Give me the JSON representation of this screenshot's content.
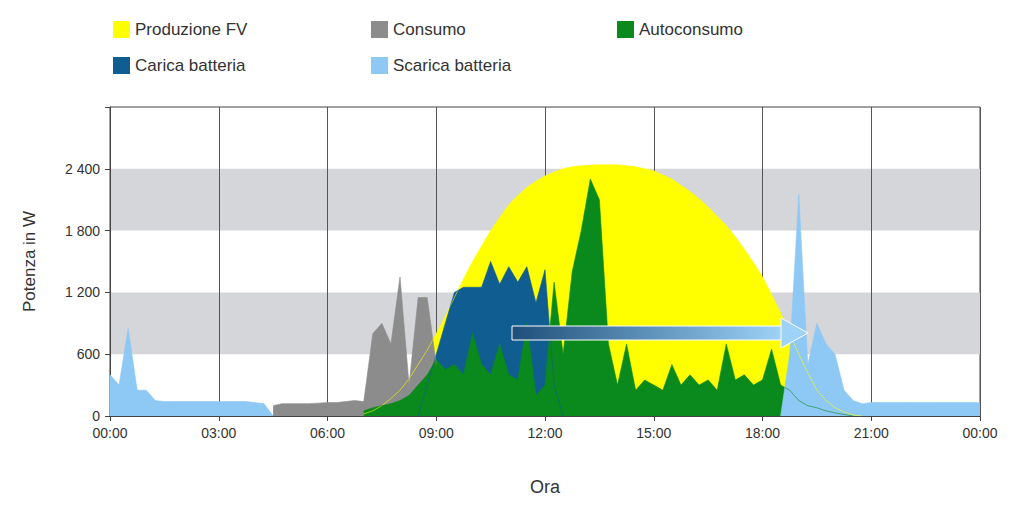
{
  "chart_data": {
    "type": "area",
    "x_label": "Ora",
    "y_label": "Potenza in W",
    "xlim": [
      0,
      24
    ],
    "xticks": [
      {
        "value": 0,
        "label": "00:00"
      },
      {
        "value": 3,
        "label": "03:00"
      },
      {
        "value": 6,
        "label": "06:00"
      },
      {
        "value": 9,
        "label": "09:00"
      },
      {
        "value": 12,
        "label": "12:00"
      },
      {
        "value": 15,
        "label": "15:00"
      },
      {
        "value": 18,
        "label": "18:00"
      },
      {
        "value": 21,
        "label": "21:00"
      },
      {
        "value": 24,
        "label": "00:00"
      }
    ],
    "ylim": [
      0,
      3000
    ],
    "yticks": [
      0,
      600,
      {
        "value": 1200,
        "label": "1 200"
      },
      {
        "value": 1800,
        "label": "1 800"
      },
      {
        "value": 2400,
        "label": "2 400"
      }
    ],
    "grid": true,
    "legend": "top",
    "x": [
      0,
      0.25,
      0.5,
      0.75,
      1,
      1.25,
      1.5,
      1.75,
      2,
      2.25,
      2.5,
      2.75,
      3,
      3.25,
      3.5,
      3.75,
      4,
      4.25,
      4.5,
      4.75,
      5,
      5.25,
      5.5,
      5.75,
      6,
      6.25,
      6.5,
      6.75,
      7,
      7.25,
      7.5,
      7.75,
      8,
      8.25,
      8.5,
      8.75,
      9,
      9.25,
      9.5,
      9.75,
      10,
      10.25,
      10.5,
      10.75,
      11,
      11.25,
      11.5,
      11.75,
      12,
      12.25,
      12.5,
      12.75,
      13,
      13.25,
      13.5,
      13.75,
      14,
      14.25,
      14.5,
      14.75,
      15,
      15.25,
      15.5,
      15.75,
      16,
      16.25,
      16.5,
      16.75,
      17,
      17.25,
      17.5,
      17.75,
      18,
      18.25,
      18.5,
      18.75,
      19,
      19.25,
      19.5,
      19.75,
      20,
      20.25,
      20.5,
      20.75,
      21,
      21.25,
      21.5,
      21.75,
      22,
      22.25,
      22.5,
      22.75,
      23,
      23.25,
      23.5,
      23.75,
      24
    ],
    "series": [
      {
        "name": "Produzione FV",
        "color": "#ffff00",
        "values": [
          null,
          null,
          null,
          null,
          null,
          null,
          null,
          null,
          null,
          null,
          null,
          null,
          null,
          null,
          null,
          null,
          null,
          null,
          null,
          null,
          null,
          null,
          null,
          null,
          null,
          null,
          null,
          null,
          20,
          50,
          100,
          170,
          250,
          360,
          500,
          640,
          800,
          970,
          1150,
          1330,
          1500,
          1650,
          1800,
          1930,
          2050,
          2140,
          2220,
          2280,
          2330,
          2370,
          2400,
          2420,
          2430,
          2435,
          2440,
          2440,
          2440,
          2430,
          2420,
          2400,
          2380,
          2340,
          2300,
          2240,
          2180,
          2110,
          2030,
          1940,
          1850,
          1740,
          1620,
          1490,
          1350,
          1180,
          1000,
          800,
          600,
          420,
          250,
          150,
          80,
          40,
          10,
          0,
          null,
          null,
          null,
          null,
          null,
          null,
          null,
          null,
          null,
          null,
          null,
          null,
          null
        ]
      },
      {
        "name": "Carica batteria",
        "color": "#105e91",
        "values": [
          null,
          null,
          null,
          null,
          null,
          null,
          null,
          null,
          null,
          null,
          null,
          null,
          null,
          null,
          null,
          null,
          null,
          null,
          null,
          null,
          null,
          null,
          null,
          null,
          null,
          null,
          null,
          null,
          null,
          null,
          null,
          null,
          null,
          null,
          0,
          300,
          600,
          900,
          1200,
          1250,
          1250,
          1250,
          1500,
          1280,
          1450,
          1300,
          1450,
          1100,
          1420,
          300,
          0,
          null,
          null,
          null,
          null,
          null,
          null,
          null,
          null,
          null,
          null,
          null,
          null,
          null,
          null,
          null,
          null,
          null,
          null,
          null,
          null,
          null,
          null,
          null,
          null,
          null,
          null,
          null,
          null,
          null,
          null,
          null,
          null,
          null,
          null,
          null,
          null,
          null,
          null,
          null,
          null,
          null,
          null,
          null,
          null,
          null,
          null
        ]
      },
      {
        "name": "Consumo",
        "color": "#8c8c8c",
        "values": [
          null,
          null,
          null,
          null,
          null,
          null,
          null,
          null,
          null,
          null,
          null,
          null,
          null,
          null,
          null,
          null,
          null,
          null,
          100,
          120,
          120,
          120,
          120,
          125,
          130,
          130,
          140,
          150,
          140,
          800,
          900,
          700,
          1350,
          300,
          1150,
          1150,
          500,
          null,
          null,
          null,
          null,
          null,
          null,
          null,
          null,
          null,
          null,
          null,
          null,
          null,
          null,
          null,
          null,
          null,
          null,
          null,
          null,
          null,
          null,
          null,
          null,
          null,
          null,
          null,
          null,
          null,
          null,
          null,
          null,
          null,
          null,
          null,
          null,
          null,
          null,
          null,
          null,
          null,
          null,
          null,
          null,
          null,
          null,
          null,
          null,
          null,
          null,
          null,
          null,
          null,
          null,
          null,
          null,
          null,
          null,
          null,
          null
        ]
      },
      {
        "name": "Autoconsumo",
        "color": "#0a8a1c",
        "values": [
          null,
          null,
          null,
          null,
          null,
          null,
          null,
          null,
          null,
          null,
          null,
          null,
          null,
          null,
          null,
          null,
          null,
          null,
          null,
          null,
          null,
          null,
          null,
          null,
          null,
          null,
          null,
          null,
          50,
          80,
          100,
          120,
          150,
          200,
          300,
          400,
          550,
          450,
          500,
          400,
          800,
          500,
          400,
          700,
          400,
          350,
          900,
          200,
          300,
          1300,
          600,
          1400,
          1800,
          2300,
          2100,
          700,
          300,
          700,
          250,
          350,
          300,
          250,
          500,
          300,
          400,
          300,
          350,
          250,
          700,
          350,
          400,
          300,
          350,
          650,
          300,
          250,
          150,
          100,
          80,
          50,
          30,
          15,
          0,
          null,
          null,
          null,
          null,
          null,
          null,
          null,
          null,
          null,
          null,
          null,
          null,
          null,
          null
        ]
      },
      {
        "name": "Scarica batteria",
        "color": "#8ec8f5",
        "values": [
          400,
          300,
          850,
          250,
          250,
          150,
          140,
          140,
          140,
          140,
          140,
          140,
          140,
          140,
          140,
          140,
          130,
          120,
          0,
          null,
          null,
          null,
          null,
          null,
          null,
          null,
          null,
          null,
          null,
          null,
          null,
          null,
          null,
          null,
          null,
          null,
          null,
          null,
          null,
          null,
          null,
          null,
          null,
          null,
          null,
          null,
          null,
          null,
          null,
          null,
          null,
          null,
          null,
          null,
          null,
          null,
          null,
          null,
          null,
          null,
          null,
          null,
          null,
          null,
          null,
          null,
          null,
          null,
          null,
          null,
          null,
          null,
          null,
          null,
          0,
          600,
          2150,
          500,
          900,
          700,
          600,
          250,
          150,
          120,
          130,
          130,
          130,
          130,
          130,
          130,
          130,
          130,
          130,
          130,
          130,
          130,
          130
        ]
      }
    ]
  }
}
